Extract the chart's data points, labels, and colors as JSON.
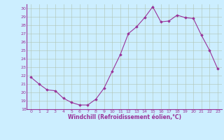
{
  "y_fixed": [
    21.8,
    21.0,
    20.3,
    20.2,
    19.3,
    18.8,
    18.5,
    18.5,
    19.2,
    20.5,
    22.5,
    24.5,
    27.0,
    27.8,
    28.9,
    30.2,
    28.4,
    28.5,
    29.2,
    28.9,
    28.8,
    26.8,
    25.0,
    22.8
  ],
  "line_color": "#993399",
  "marker": "D",
  "marker_size": 1.8,
  "bg_color": "#cceeff",
  "grid_color": "#b0c4b0",
  "xlabel": "Windchill (Refroidissement éolien,°C)",
  "xlabel_color": "#993399",
  "tick_color": "#993399",
  "ylim": [
    18,
    30.5
  ],
  "xlim": [
    -0.5,
    23.5
  ],
  "yticks": [
    18,
    19,
    20,
    21,
    22,
    23,
    24,
    25,
    26,
    27,
    28,
    29,
    30
  ],
  "xticks": [
    0,
    1,
    2,
    3,
    4,
    5,
    6,
    7,
    8,
    9,
    10,
    11,
    12,
    13,
    14,
    15,
    16,
    17,
    18,
    19,
    20,
    21,
    22,
    23
  ]
}
